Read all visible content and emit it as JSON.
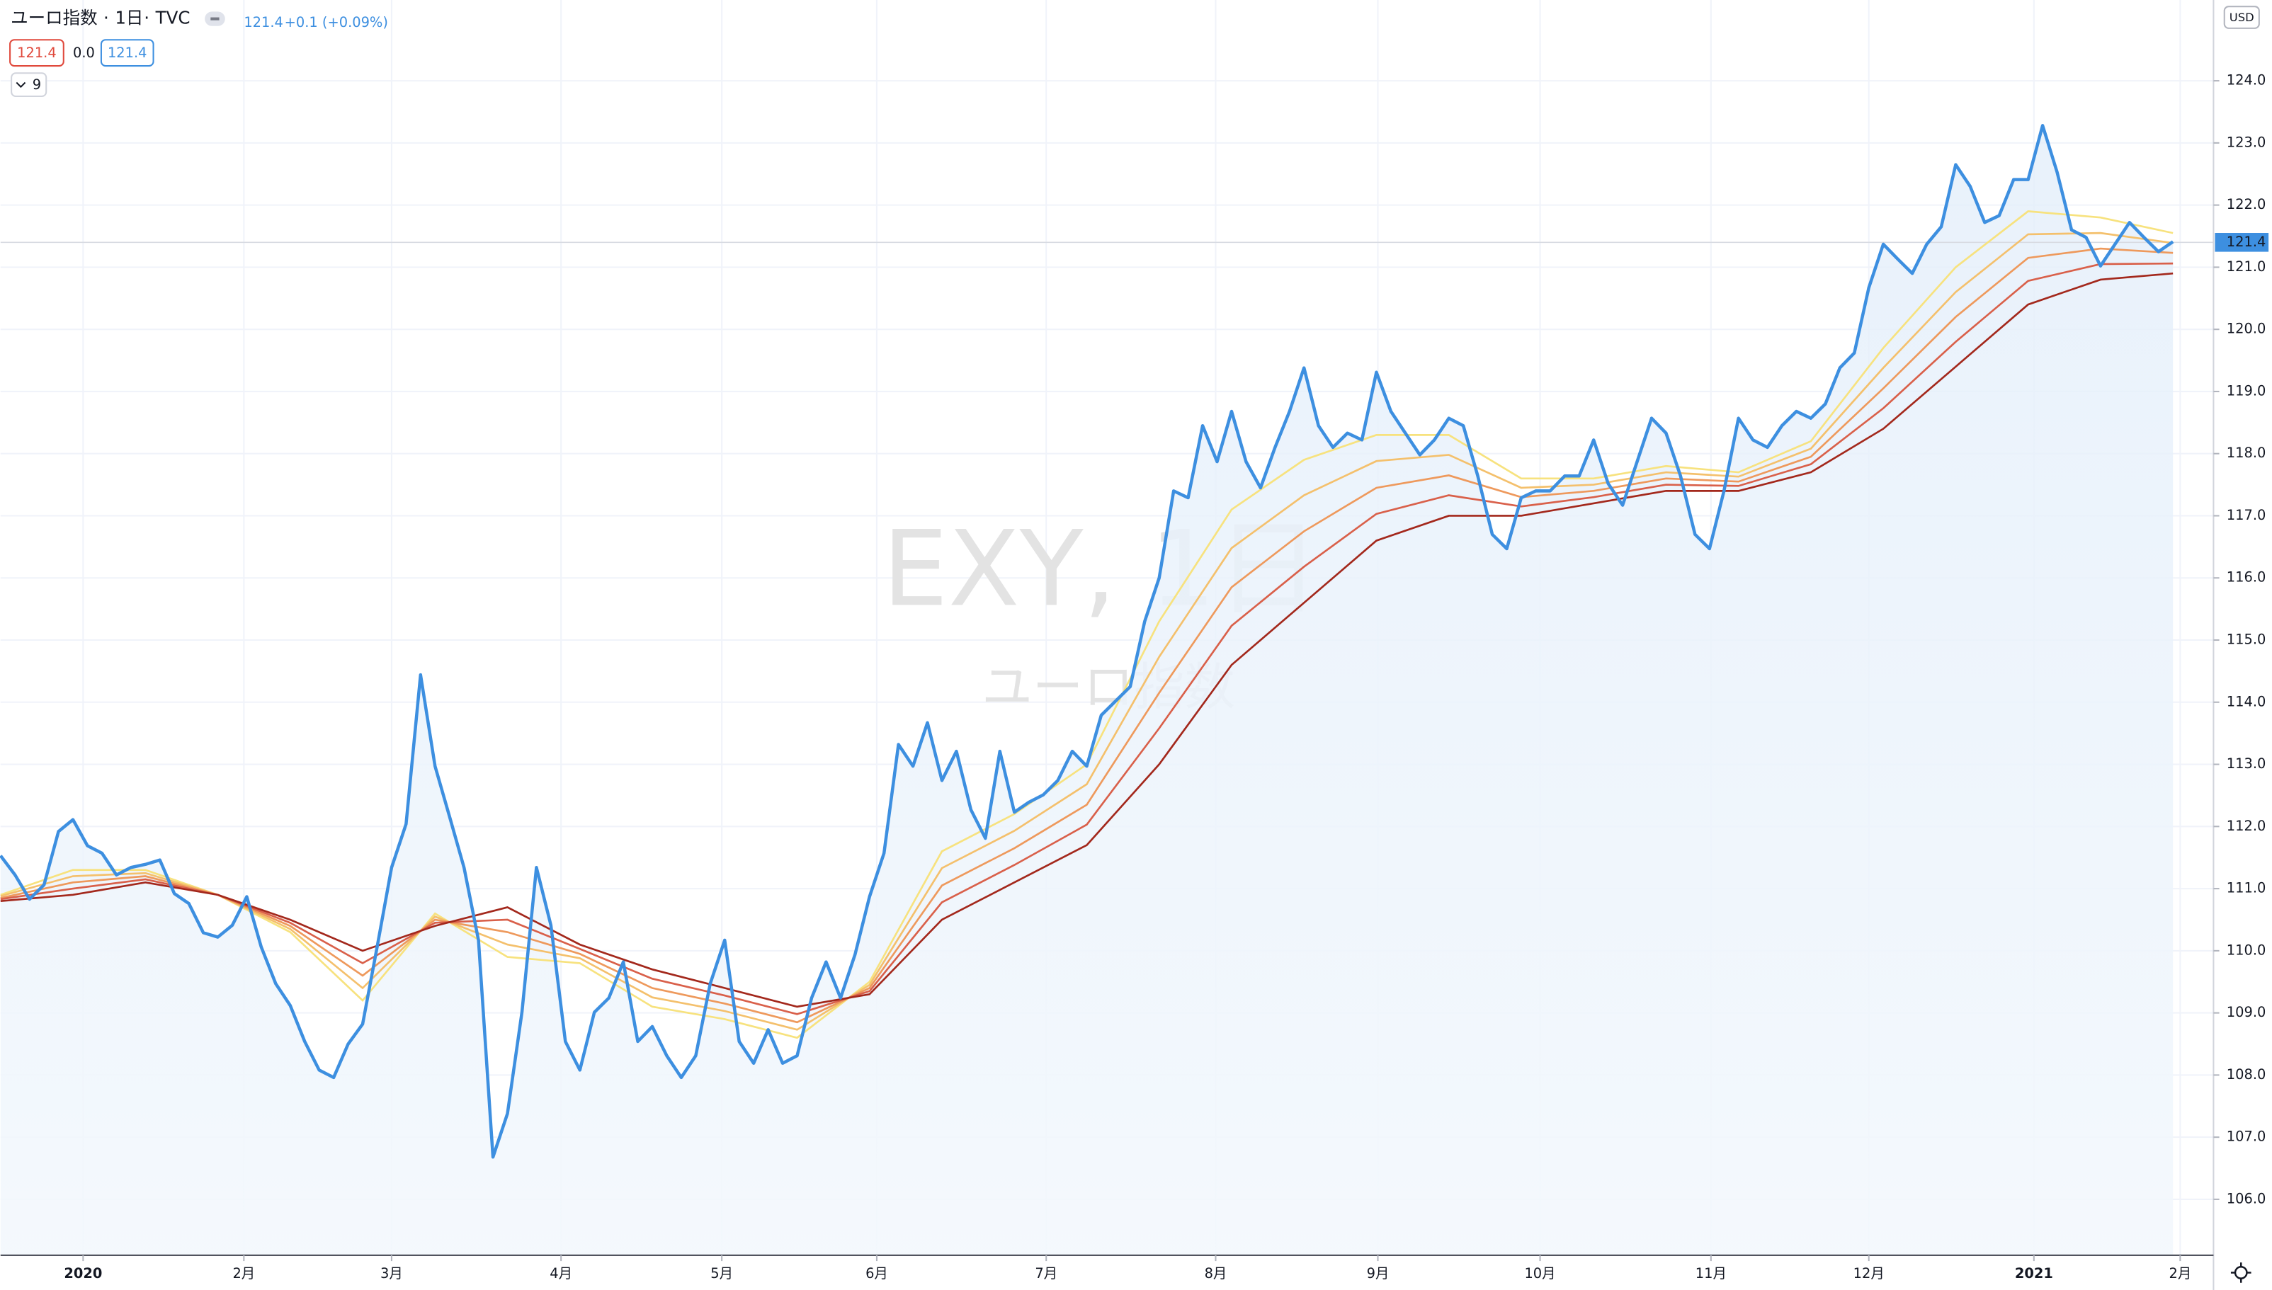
{
  "chart_data": {
    "type": "line",
    "header": {
      "name": "ユーロ指数",
      "interval": "1日",
      "exchange": "TVC"
    },
    "legend": {
      "last": "121.4",
      "change": "+0.1 (+0.09%)"
    },
    "indicator": {
      "first": "121.4",
      "middle": "0.0",
      "last": "121.4"
    },
    "indicator_count": "9",
    "watermark": {
      "title": "EXY, 1日",
      "subtitle": "ユーロ指数"
    },
    "currency": "USD",
    "last_price": 121.4,
    "xlim": [
      0,
      152.8
    ],
    "xticks": [
      {
        "value": 5.7,
        "label": "2020"
      },
      {
        "value": 16.8,
        "label": "2月"
      },
      {
        "value": 27.0,
        "label": "3月"
      },
      {
        "value": 38.7,
        "label": "4月"
      },
      {
        "value": 49.8,
        "label": "5月"
      },
      {
        "value": 60.5,
        "label": "6月"
      },
      {
        "value": 72.2,
        "label": "7月"
      },
      {
        "value": 83.9,
        "label": "8月"
      },
      {
        "value": 95.1,
        "label": "9月"
      },
      {
        "value": 106.3,
        "label": "10月"
      },
      {
        "value": 118.1,
        "label": "11月"
      },
      {
        "value": 129.0,
        "label": "12月"
      },
      {
        "value": 140.4,
        "label": "2021"
      },
      {
        "value": 150.5,
        "label": "2月"
      }
    ],
    "ylim": [
      105.1,
      125.3
    ],
    "yticks": [
      {
        "value": 106,
        "label": "106.0"
      },
      {
        "value": 107,
        "label": "107.0"
      },
      {
        "value": 108,
        "label": "108.0"
      },
      {
        "value": 109,
        "label": "109.0"
      },
      {
        "value": 110,
        "label": "110.0"
      },
      {
        "value": 111,
        "label": "111.0"
      },
      {
        "value": 112,
        "label": "112.0"
      },
      {
        "value": 113,
        "label": "113.0"
      },
      {
        "value": 114,
        "label": "114.0"
      },
      {
        "value": 115,
        "label": "115.0"
      },
      {
        "value": 116,
        "label": "116.0"
      },
      {
        "value": 117,
        "label": "117.0"
      },
      {
        "value": 118,
        "label": "118.0"
      },
      {
        "value": 119,
        "label": "119.0"
      },
      {
        "value": 120,
        "label": "120.0"
      },
      {
        "value": 121,
        "label": "121.0"
      },
      {
        "value": 122,
        "label": "122.0"
      },
      {
        "value": 123,
        "label": "123.0"
      },
      {
        "value": 124,
        "label": "124.0"
      }
    ],
    "grid": true,
    "price": {
      "color": "#3d8fe0",
      "values": [
        111.53,
        111.22,
        110.83,
        111.06,
        111.92,
        112.11,
        111.69,
        111.57,
        111.22,
        111.34,
        111.39,
        111.46,
        110.92,
        110.76,
        110.29,
        110.22,
        110.41,
        110.87,
        110.06,
        109.47,
        109.12,
        108.54,
        108.08,
        107.96,
        108.5,
        108.82,
        110.06,
        111.34,
        112.04,
        114.44,
        112.97,
        112.16,
        111.34,
        110.17,
        106.68,
        107.38,
        109.01,
        111.34,
        110.41,
        108.54,
        108.08,
        109.01,
        109.24,
        109.82,
        108.54,
        108.78,
        108.31,
        107.96,
        108.31,
        109.47,
        110.17,
        108.54,
        108.19,
        108.73,
        108.19,
        108.31,
        109.24,
        109.82,
        109.24,
        109.94,
        110.87,
        111.57,
        113.32,
        112.97,
        113.67,
        112.74,
        113.21,
        112.27,
        111.81,
        113.21,
        112.23,
        112.39,
        112.51,
        112.74,
        113.21,
        112.97,
        113.79,
        114.02,
        114.25,
        115.3,
        116.0,
        117.4,
        117.29,
        118.45,
        117.87,
        118.68,
        117.87,
        117.45,
        118.1,
        118.68,
        119.38,
        118.45,
        118.1,
        118.33,
        118.22,
        119.31,
        118.68,
        118.33,
        117.98,
        118.22,
        118.57,
        118.45,
        117.64,
        116.7,
        116.47,
        117.29,
        117.4,
        117.4,
        117.64,
        117.64,
        118.22,
        117.52,
        117.17,
        117.87,
        118.57,
        118.33,
        117.64,
        116.7,
        116.47,
        117.4,
        118.57,
        118.22,
        118.1,
        118.45,
        118.68,
        118.57,
        118.8,
        119.38,
        119.62,
        120.67,
        121.37,
        121.13,
        120.9,
        121.37,
        121.65,
        122.65,
        122.3,
        121.72,
        121.83,
        122.41,
        122.41,
        123.28,
        122.53,
        121.6,
        121.48,
        121.02,
        121.37,
        121.72,
        121.48,
        121.25,
        121.41
      ]
    },
    "series": [
      {
        "color": "#f7e27e",
        "values": [
          110.9,
          111.3,
          111.3,
          110.9,
          110.3,
          109.2,
          110.6,
          109.9,
          109.8,
          109.1,
          108.9,
          108.6,
          109.5,
          111.6,
          112.2,
          113.0,
          115.3,
          117.1,
          117.9,
          118.3,
          118.3,
          117.6,
          117.6,
          117.8,
          117.7,
          118.2,
          119.7,
          121.0,
          121.9,
          121.8,
          121.55
        ]
      },
      {
        "color": "#f4c06c",
        "values": [
          110.88,
          111.2,
          111.25,
          110.9,
          110.35,
          109.4,
          110.55,
          110.1,
          109.88,
          109.25,
          109.03,
          108.73,
          109.45,
          111.33,
          111.93,
          112.68,
          114.73,
          116.48,
          117.33,
          117.88,
          117.98,
          117.45,
          117.5,
          117.7,
          117.63,
          118.08,
          119.38,
          120.6,
          121.53,
          121.55,
          121.39
        ]
      },
      {
        "color": "#ee995c",
        "values": [
          110.85,
          111.1,
          111.2,
          110.9,
          110.4,
          109.6,
          110.5,
          110.3,
          109.95,
          109.4,
          109.15,
          108.85,
          109.4,
          111.05,
          111.65,
          112.35,
          114.15,
          115.85,
          116.75,
          117.45,
          117.65,
          117.3,
          117.4,
          117.6,
          117.55,
          117.95,
          119.05,
          120.2,
          121.15,
          121.3,
          121.23
        ]
      },
      {
        "color": "#d9604a",
        "values": [
          110.83,
          111.0,
          111.15,
          110.9,
          110.45,
          109.8,
          110.45,
          110.5,
          110.03,
          109.55,
          109.28,
          108.98,
          109.35,
          110.78,
          111.38,
          112.03,
          113.58,
          115.23,
          116.18,
          117.03,
          117.33,
          117.15,
          117.3,
          117.5,
          117.48,
          117.83,
          118.73,
          119.8,
          120.78,
          121.05,
          121.06
        ]
      },
      {
        "color": "#a3281c",
        "values": [
          110.8,
          110.9,
          111.1,
          110.9,
          110.5,
          110.0,
          110.4,
          110.7,
          110.1,
          109.7,
          109.4,
          109.1,
          109.3,
          110.5,
          111.1,
          111.7,
          113.0,
          114.6,
          115.6,
          116.6,
          117.0,
          117.0,
          117.2,
          117.4,
          117.4,
          117.7,
          118.4,
          119.4,
          120.4,
          120.8,
          120.9
        ]
      }
    ]
  }
}
